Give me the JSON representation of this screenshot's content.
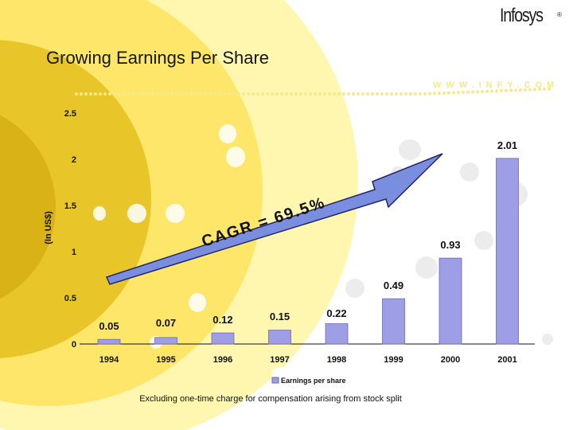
{
  "header": {
    "logo_text": "Infosys",
    "logo_mark": "®",
    "title": "Growing Earnings Per Share",
    "url": "WWW.INFY.COM"
  },
  "colors": {
    "bar": "#9e9ee6",
    "bar_edge": "#6b6bb8",
    "arrow": "#7a8ee0",
    "arrow_edge": "#24246a",
    "yellow_light": "#fff7b0",
    "yellow_mid": "#fde66a",
    "yellow_dark": "#e8c62a",
    "dots": "#f6e88e"
  },
  "chart_data": {
    "type": "bar",
    "title": "Growing Earnings Per Share",
    "categories": [
      "1994",
      "1995",
      "1996",
      "1997",
      "1998",
      "1999",
      "2000",
      "2001"
    ],
    "series": [
      {
        "name": "Earnings per share",
        "values": [
          0.05,
          0.07,
          0.12,
          0.15,
          0.22,
          0.49,
          0.93,
          2.01
        ]
      }
    ],
    "value_labels": [
      "0.05",
      "0.07",
      "0.12",
      "0.15",
      "0.22",
      "0.49",
      "0.93",
      "2.01"
    ],
    "ylabel": "(In US$)",
    "xlabel": "",
    "ylim": [
      0,
      2.5
    ],
    "yticks": [
      "0",
      "0.5",
      "1",
      "1.5",
      "2",
      "2.5"
    ],
    "grid": false,
    "legend": "bottom-center",
    "annotation": "CAGR = 69.5%"
  },
  "footnote": "Excluding one-time charge for compensation arising from stock split"
}
